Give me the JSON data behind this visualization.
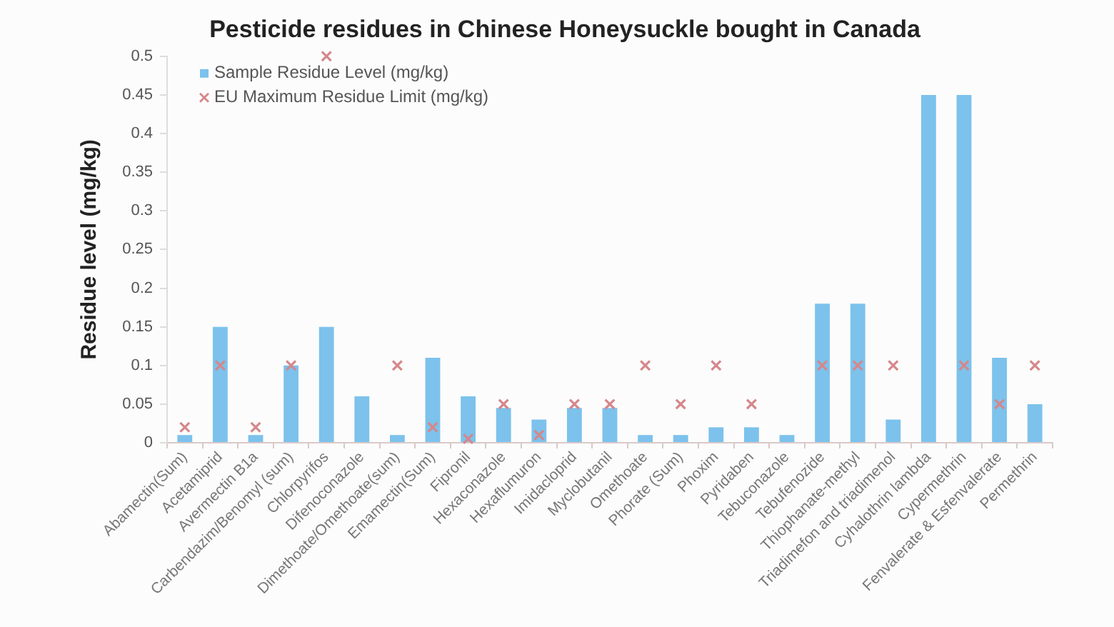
{
  "chart_data": {
    "type": "bar",
    "title": "Pesticide residues in Chinese Honeysuckle bought in Canada",
    "ylabel": "Residue level (mg/kg)",
    "categories": [
      "Abamectin(Sum)",
      "Acetamiprid",
      "Avermectin B1a",
      "Carbendazim/Benomyl (sum)",
      "Chlorpyrifos",
      "Difenoconazole",
      "Dimethoate/Omethoate(sum)",
      "Emamectin(Sum)",
      "Fipronil",
      "Hexaconazole",
      "Hexaflumuron",
      "Imidacloprid",
      "Myclobutanil",
      "Omethoate",
      "Phorate (Sum)",
      "Phoxim",
      "Pyridaben",
      "Tebuconazole",
      "Tebufenozide",
      "Thiophanate-methyl",
      "Triadimefon and triadimenol",
      "Cyhalothrin lambda",
      "Cypermethrin",
      "Fenvalerate & Esfenvalerate",
      "Permethrin"
    ],
    "series": [
      {
        "name": "Sample Residue Level (mg/kg)",
        "color": "#7cc2ec",
        "values": [
          0.01,
          0.15,
          0.01,
          0.1,
          0.15,
          0.06,
          0.01,
          0.11,
          0.06,
          0.045,
          0.03,
          0.045,
          0.045,
          0.01,
          0.01,
          0.02,
          0.02,
          0.01,
          0.18,
          0.18,
          0.03,
          0.45,
          0.45,
          0.11,
          0.05
        ]
      },
      {
        "name": "EU Maximum Residue Limit (mg/kg)",
        "type": "scatter",
        "color": "#d5878b",
        "x": [
          "Abamectin(Sum)",
          "Acetamiprid",
          "Avermectin B1a",
          "Carbendazim/Benomyl (sum)",
          "Chlorpyrifos",
          "Difenoconazole",
          "Dimethoate/Omethoate(sum)",
          "Emamectin(Sum)",
          "Fipronil",
          "Hexaconazole",
          "Hexaflumuron",
          "Imidacloprid",
          "Myclobutanil",
          "Omethoate",
          "Phorate (Sum)",
          "Phoxim",
          "Pyridaben",
          "Tebuconazole",
          "Tebufenozide",
          "Thiophanate-methyl",
          "Triadimefon and triadimenol",
          "Cyhalothrin lambda",
          "Cypermethrin",
          "Fenvalerate & Esfenvalerate",
          "Permethrin"
        ],
        "values": [
          0.02,
          0.1,
          0.02,
          0.1,
          0.5,
          null,
          0.1,
          0.02,
          0.005,
          0.05,
          0.01,
          0.05,
          0.05,
          0.1,
          0.05,
          0.1,
          0.05,
          null,
          0.1,
          0.1,
          0.1,
          null,
          0.1,
          0.05,
          0.1
        ]
      }
    ],
    "ylim": [
      0,
      0.5
    ],
    "yticks": [
      0,
      0.05,
      0.1,
      0.15,
      0.2,
      0.25,
      0.3,
      0.35,
      0.4,
      0.45,
      0.5
    ],
    "marker": "cross",
    "legend": "top left"
  }
}
